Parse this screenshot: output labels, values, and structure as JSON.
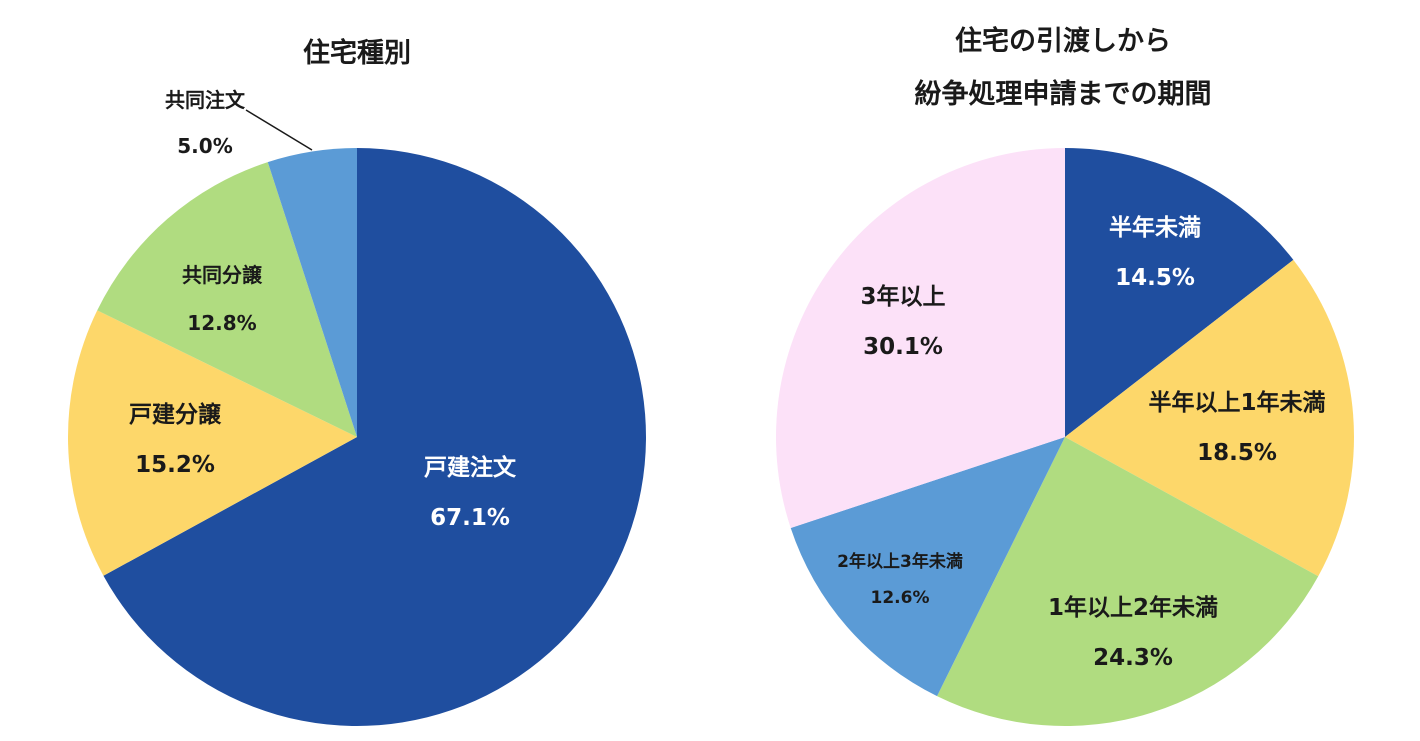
{
  "chart_data": [
    {
      "type": "pie",
      "title": "住宅種別",
      "slices": [
        {
          "label": "戸建注文",
          "value": 67.1,
          "value_label": "67.1%",
          "color": "#1f4e9f",
          "text_color": "#ffffff"
        },
        {
          "label": "戸建分譲",
          "value": 15.2,
          "value_label": "15.2%",
          "color": "#fdd76a",
          "text_color": "#1a1a1a"
        },
        {
          "label": "共同分譲",
          "value": 12.8,
          "value_label": "12.8%",
          "color": "#b0dc80",
          "text_color": "#1a1a1a"
        },
        {
          "label": "共同注文",
          "value": 5.0,
          "value_label": "5.0%",
          "color": "#5b9bd6",
          "text_color": "#1a1a1a"
        }
      ]
    },
    {
      "type": "pie",
      "title": [
        "住宅の引渡しから",
        "紛争処理申請までの期間"
      ],
      "slices": [
        {
          "label": "半年未満",
          "value": 14.5,
          "value_label": "14.5%",
          "color": "#1f4e9f",
          "text_color": "#ffffff"
        },
        {
          "label": "半年以上1年未満",
          "value": 18.5,
          "value_label": "18.5%",
          "color": "#fdd76a",
          "text_color": "#1a1a1a"
        },
        {
          "label": "1年以上2年未満",
          "value": 24.3,
          "value_label": "24.3%",
          "color": "#b0dc80",
          "text_color": "#1a1a1a"
        },
        {
          "label": "2年以上3年未満",
          "value": 12.6,
          "value_label": "12.6%",
          "color": "#5b9bd6",
          "text_color": "#1a1a1a"
        },
        {
          "label": "3年以上",
          "value": 30.1,
          "value_label": "30.1%",
          "color": "#fce1f8",
          "text_color": "#1a1a1a"
        }
      ]
    }
  ]
}
